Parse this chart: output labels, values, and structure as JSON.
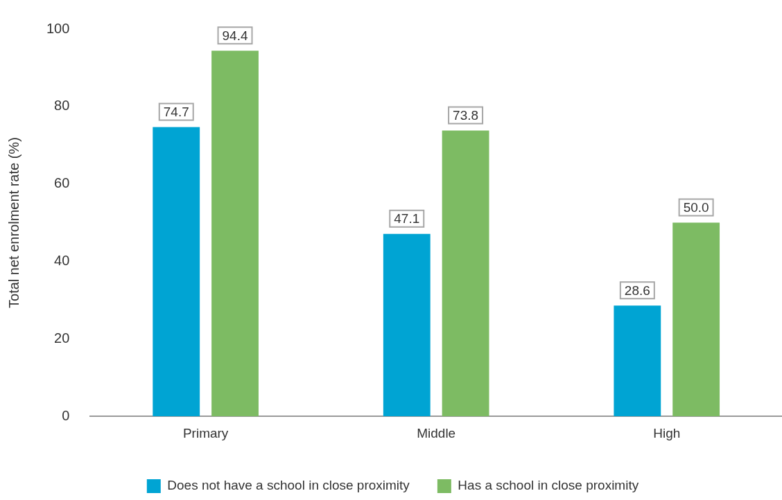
{
  "chart_data": {
    "type": "bar",
    "ylabel": "Total net enrolment rate (%)",
    "categories": [
      "Primary",
      "Middle",
      "High"
    ],
    "series": [
      {
        "name": "Does not have a school in close proximity",
        "color": "#00a4d3",
        "values": [
          74.7,
          47.1,
          28.6
        ],
        "value_labels": [
          "74.7",
          "47.1",
          "28.6"
        ]
      },
      {
        "name": "Has a school in close proximity",
        "color": "#7dbb63",
        "values": [
          94.4,
          73.8,
          50.0
        ],
        "value_labels": [
          "94.4",
          "73.8",
          "50.0"
        ]
      }
    ],
    "ylim": [
      0,
      100
    ],
    "yticks": [
      0,
      20,
      40,
      60,
      80,
      100
    ],
    "grid": false,
    "legend": "bottom"
  }
}
